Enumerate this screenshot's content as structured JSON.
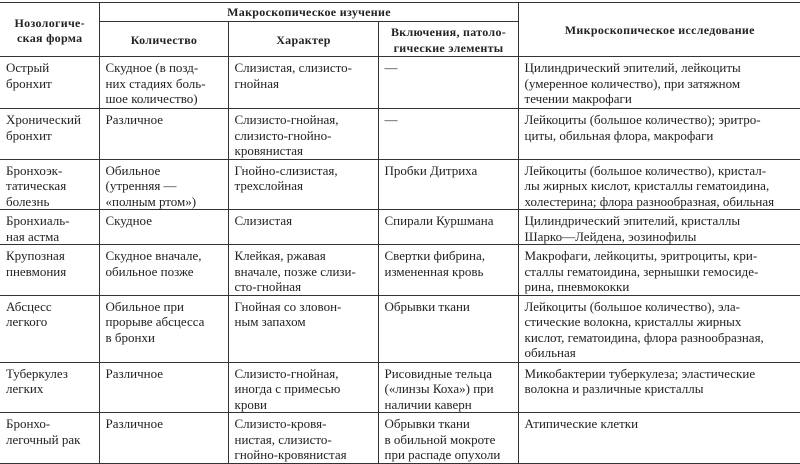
{
  "header": {
    "nosological_form": "Нозологиче-\nская форма",
    "macroscopic": "Макроскопическое изучение",
    "quantity": "Количество",
    "character": "Характер",
    "inclusions": "Включения, патоло-\nгические элементы",
    "microscopic": "Микроскопическое исследование"
  },
  "rows": [
    {
      "form": "Острый\nбронхит",
      "quantity": "Скудное (в позд-\nних стадиях боль-\nшое количество)",
      "character": "Слизистая, слизисто-\nгнойная",
      "inclusions": "—",
      "microscopic": "Цилиндрический эпителий, лейкоциты\n(умеренное количество), при затяжном\nтечении макрофаги"
    },
    {
      "form": "Хронический\nбронхит",
      "quantity": "Различное",
      "character": "Слизисто-гнойная,\nслизисто-гнойно-\nкровянистая",
      "inclusions": "—",
      "microscopic": "Лейкоциты (большое количество); эритро-\nциты, обильная флора, макрофаги"
    },
    {
      "form": "Бронхоэк-\nтатическая\nболезнь",
      "quantity": "Обильное\n(утренняя —\n«полным ртом»)",
      "character": "Гнойно-слизистая,\nтрехслойная",
      "inclusions": "Пробки Дитриха",
      "microscopic": "Лейкоциты (большое количество), кристал-\nлы жирных кислот, кристаллы гематоидина,\nхолестерина; флора разнообразная, обильная"
    },
    {
      "form": "Бронхиаль-\nная астма",
      "quantity": "Скудное",
      "character": "Слизистая",
      "inclusions": "Спирали Куршмана",
      "microscopic": "Цилиндрический эпителий, кристаллы\nШарко—Лейдена, эозинофилы"
    },
    {
      "form": "Крупозная\nпневмония",
      "quantity": "Скудное вначале,\nобильное позже",
      "character": "Клейкая, ржавая\nвначале, позже слизи-\nсто-гнойная",
      "inclusions": "Свертки фибрина,\nизмененная кровь",
      "microscopic": "Макрофаги, лейкоциты, эритроциты, кри-\nсталлы гематоидина, зернышки гемосиде-\nрина, пневмококки"
    },
    {
      "form": "Абсцесс\nлегкого",
      "quantity": "Обильное при\nпрорыве абсцесса\nв бронхи",
      "character": "Гнойная со зловон-\nным запахом",
      "inclusions": "Обрывки ткани",
      "microscopic": "Лейкоциты (большое количество), эла-\nстические волокна, кристаллы жирных\nкислот, гематоидина, флора разнообразная,\nобильная"
    },
    {
      "form": "Туберкулез\nлегких",
      "quantity": "Различное",
      "character": "Слизисто-гнойная,\nиногда с примесью\nкрови",
      "inclusions": "Рисовидные тельца\n(«линзы Коха») при\nналичии каверн",
      "microscopic": "Микобактерии туберкулеза; эластические\nволокна и различные кристаллы"
    },
    {
      "form": "Бронхо-\nлегочный рак",
      "quantity": "Различное",
      "character": "Слизисто-кровя-\nнистая, слизисто-\nгнойно-кровянистая",
      "inclusions": "Обрывки ткани\nв обильной мокроте\nпри распаде опухоли",
      "microscopic": "Атипические клетки"
    }
  ]
}
